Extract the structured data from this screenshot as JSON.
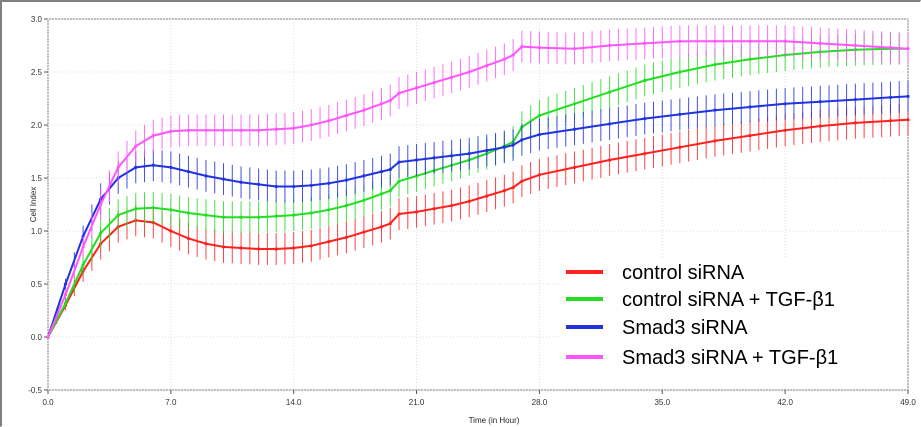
{
  "chart_data": {
    "type": "line",
    "xlabel": "Time (in Hour)",
    "ylabel": "Cell Index",
    "xlim": [
      0,
      49
    ],
    "ylim": [
      -0.5,
      3.0
    ],
    "x_ticks": [
      "0.0",
      "7.0",
      "14.0",
      "21.0",
      "28.0",
      "35.0",
      "42.0",
      "49.0"
    ],
    "y_ticks": [
      "-0.5",
      "0.0",
      "0.5",
      "1.0",
      "1.5",
      "2.0",
      "2.5",
      "3.0"
    ],
    "grid": true,
    "legend_position": "bottom-right",
    "error_bars": true,
    "series": [
      {
        "name": "control siRNA",
        "color": "#ff2020",
        "x": [
          0,
          1,
          2,
          3,
          4,
          5,
          6,
          7,
          8,
          9,
          10,
          11,
          12,
          13,
          14,
          15,
          16,
          17,
          18,
          19,
          19.5,
          20,
          21,
          22,
          23,
          24,
          25,
          26,
          26.5,
          27,
          28,
          30,
          32,
          34,
          36,
          38,
          40,
          42,
          44,
          46,
          48,
          49
        ],
        "y": [
          0.0,
          0.3,
          0.62,
          0.88,
          1.04,
          1.1,
          1.08,
          1.0,
          0.93,
          0.88,
          0.85,
          0.84,
          0.83,
          0.83,
          0.84,
          0.86,
          0.9,
          0.94,
          0.99,
          1.04,
          1.07,
          1.16,
          1.18,
          1.21,
          1.24,
          1.28,
          1.33,
          1.38,
          1.41,
          1.47,
          1.53,
          1.6,
          1.67,
          1.73,
          1.79,
          1.85,
          1.9,
          1.95,
          1.99,
          2.02,
          2.04,
          2.05
        ],
        "error": 0.15
      },
      {
        "name": "control siRNA + TGF-β1",
        "color": "#22dd22",
        "x": [
          0,
          1,
          2,
          3,
          4,
          5,
          6,
          7,
          8,
          9,
          10,
          11,
          12,
          13,
          14,
          15,
          16,
          17,
          18,
          19,
          19.5,
          20,
          21,
          22,
          23,
          24,
          25,
          26,
          26.5,
          27,
          28,
          30,
          32,
          34,
          36,
          38,
          40,
          42,
          44,
          46,
          48,
          49
        ],
        "y": [
          0.0,
          0.32,
          0.68,
          0.98,
          1.15,
          1.21,
          1.22,
          1.2,
          1.17,
          1.15,
          1.13,
          1.13,
          1.13,
          1.14,
          1.15,
          1.17,
          1.2,
          1.24,
          1.29,
          1.35,
          1.38,
          1.47,
          1.52,
          1.57,
          1.62,
          1.67,
          1.73,
          1.8,
          1.84,
          1.98,
          2.09,
          2.2,
          2.31,
          2.42,
          2.5,
          2.57,
          2.62,
          2.66,
          2.69,
          2.71,
          2.72,
          2.72
        ],
        "error": 0.15
      },
      {
        "name": "Smad3 siRNA",
        "color": "#2233dd",
        "x": [
          0,
          1,
          2,
          3,
          4,
          5,
          6,
          7,
          8,
          9,
          10,
          11,
          12,
          13,
          14,
          15,
          16,
          17,
          18,
          19,
          19.5,
          20,
          21,
          22,
          23,
          24,
          25,
          26,
          26.5,
          27,
          28,
          30,
          32,
          34,
          36,
          38,
          40,
          42,
          44,
          46,
          48,
          49
        ],
        "y": [
          0.0,
          0.5,
          0.95,
          1.3,
          1.5,
          1.6,
          1.62,
          1.6,
          1.56,
          1.52,
          1.49,
          1.46,
          1.44,
          1.42,
          1.42,
          1.43,
          1.45,
          1.48,
          1.52,
          1.56,
          1.58,
          1.65,
          1.67,
          1.69,
          1.71,
          1.73,
          1.76,
          1.79,
          1.81,
          1.86,
          1.91,
          1.96,
          2.01,
          2.06,
          2.1,
          2.14,
          2.17,
          2.2,
          2.22,
          2.24,
          2.26,
          2.27
        ],
        "error": 0.15
      },
      {
        "name": "Smad3 siRNA + TGF-β1",
        "color": "#ff55ff",
        "x": [
          0,
          1,
          2,
          3,
          4,
          5,
          6,
          7,
          8,
          9,
          10,
          11,
          12,
          13,
          14,
          15,
          16,
          17,
          18,
          19,
          19.5,
          20,
          21,
          22,
          23,
          24,
          25,
          26,
          26.5,
          27,
          28,
          30,
          32,
          34,
          36,
          38,
          40,
          42,
          44,
          46,
          48,
          49
        ],
        "y": [
          0.0,
          0.4,
          0.85,
          1.25,
          1.6,
          1.8,
          1.9,
          1.94,
          1.95,
          1.95,
          1.95,
          1.95,
          1.95,
          1.96,
          1.97,
          2.0,
          2.04,
          2.09,
          2.14,
          2.2,
          2.23,
          2.3,
          2.35,
          2.4,
          2.45,
          2.5,
          2.56,
          2.62,
          2.66,
          2.74,
          2.73,
          2.72,
          2.75,
          2.77,
          2.79,
          2.79,
          2.79,
          2.79,
          2.77,
          2.75,
          2.73,
          2.72
        ],
        "error": 0.15
      }
    ]
  }
}
